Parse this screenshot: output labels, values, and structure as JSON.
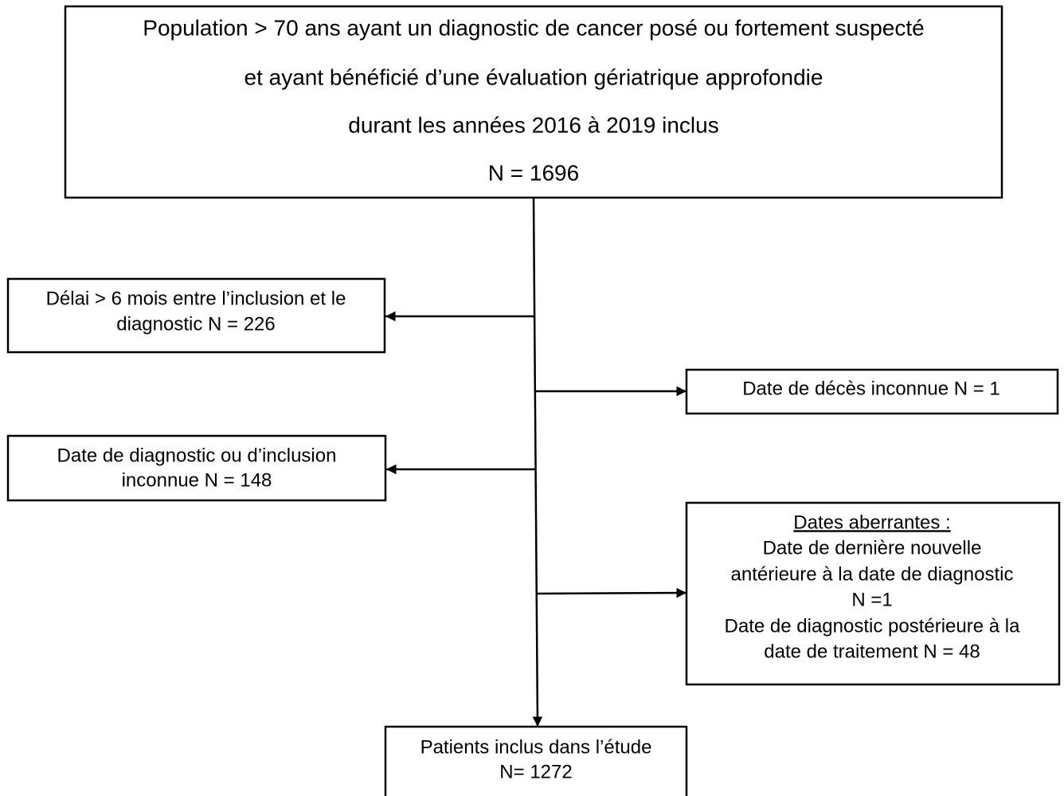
{
  "nodes": [
    {
      "lines": [
        "Population > 70 ans ayant un diagnostic de cancer posé ou fortement suspecté",
        "et ayant bénéficié d’une évaluation gériatrique approfondie",
        "durant les années 2016 à 2019 inclus",
        "N = 1696"
      ]
    },
    {
      "lines": [
        "Délai > 6 mois entre l’inclusion et  le",
        "diagnostic N = 226"
      ]
    },
    {
      "lines": [
        "Date de décès inconnue N = 1"
      ]
    },
    {
      "lines": [
        "Date de diagnostic ou d’inclusion",
        "inconnue N = 148"
      ]
    },
    {
      "lines": [
        "Dates aberrantes :",
        "Date de dernière nouvelle",
        "antérieure à la date de diagnostic",
        "N =1",
        "Date de diagnostic postérieure à la",
        "date de traitement N = 48"
      ]
    },
    {
      "lines": [
        "Patients inclus dans l’étude",
        "N= 1272"
      ]
    }
  ]
}
